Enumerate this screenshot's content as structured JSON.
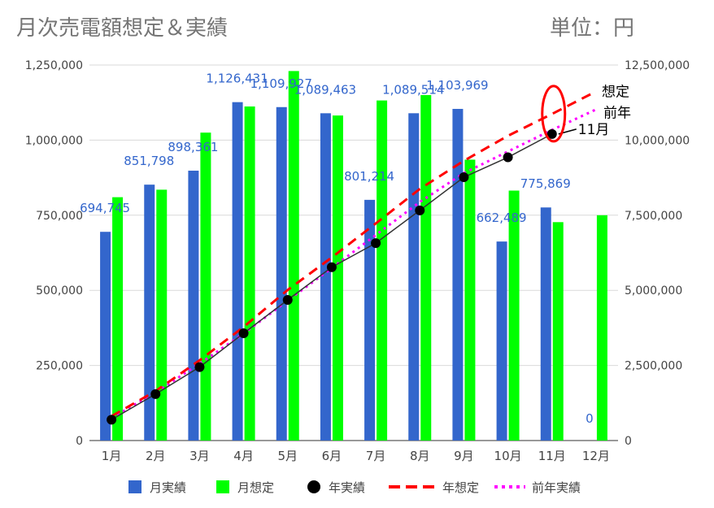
{
  "chart_data": {
    "type": "bar",
    "title": "月次売電額想定＆実績",
    "unit_label": "単位：円",
    "categories": [
      "1月",
      "2月",
      "3月",
      "4月",
      "5月",
      "6月",
      "7月",
      "8月",
      "9月",
      "10月",
      "11月",
      "12月"
    ],
    "y_left": {
      "ylim": [
        0,
        1250000
      ],
      "ticks": [
        "0",
        "250,000",
        "500,000",
        "750,000",
        "1,000,000",
        "1,250,000"
      ]
    },
    "y_right": {
      "ylim": [
        0,
        12500000
      ],
      "ticks": [
        "0",
        "2,500,000",
        "5,000,000",
        "7,500,000",
        "10,000,000",
        "12,500,000"
      ]
    },
    "grid": true,
    "legend_position": "bottom",
    "series": [
      {
        "name": "月実績",
        "type": "bar",
        "axis": "left",
        "color": "#3366CC",
        "values": [
          694745,
          851798,
          898361,
          1126431,
          1109927,
          1089463,
          801214,
          1089514,
          1103969,
          662489,
          775869,
          0
        ],
        "labels": [
          "694,745",
          "851,798",
          "898,361",
          "1,126,431",
          "1,109,927",
          "1,089,463",
          "801,214",
          "1,089,514",
          "1,103,969",
          "662,489",
          "775,869",
          "0"
        ]
      },
      {
        "name": "月想定",
        "type": "bar",
        "axis": "left",
        "color": "#00FF00",
        "values": [
          810000,
          835000,
          1025000,
          1112000,
          1230000,
          1082000,
          1132000,
          1150000,
          935000,
          832000,
          727000,
          750000
        ]
      },
      {
        "name": "年実績",
        "type": "line-markers",
        "axis": "right",
        "color": "#000000",
        "values": [
          694745,
          1546543,
          2444904,
          3571335,
          4681262,
          5770725,
          6571939,
          7661453,
          8765422,
          9427911,
          10203780,
          null
        ]
      },
      {
        "name": "年想定",
        "type": "line-dashed",
        "axis": "right",
        "color": "#FF0000",
        "values": [
          810000,
          1645000,
          2670000,
          3782000,
          5012000,
          6094000,
          7226000,
          8376000,
          9311000,
          10143000,
          10870000,
          11620000
        ]
      },
      {
        "name": "前年実績",
        "type": "line-dotted",
        "axis": "right",
        "color": "#FF00FF",
        "values": [
          750000,
          1600000,
          2560000,
          3560000,
          4660000,
          5740000,
          6840000,
          7940000,
          8900000,
          9620000,
          10340000,
          11020000
        ]
      }
    ],
    "annotations": {
      "plan": "想定",
      "prev": "前年",
      "current": "11月"
    }
  }
}
